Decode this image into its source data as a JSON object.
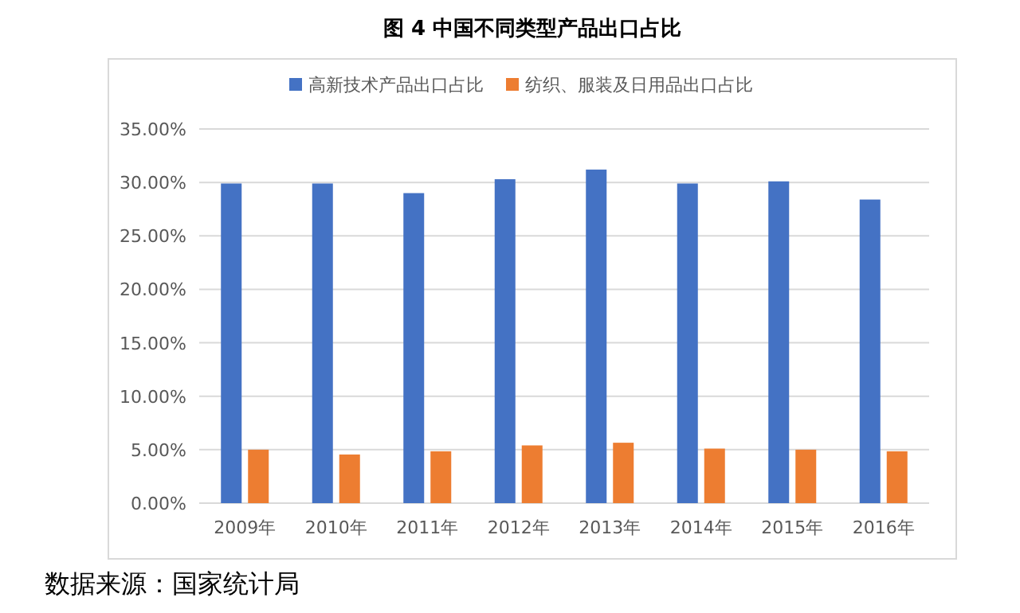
{
  "chart_data": {
    "type": "bar",
    "title": "图 4  中国不同类型产品出口占比",
    "categories": [
      "2009年",
      "2010年",
      "2011年",
      "2012年",
      "2013年",
      "2014年",
      "2015年",
      "2016年"
    ],
    "series": [
      {
        "name": "高新技术产品出口占比",
        "color": "#4472c4",
        "values": [
          29.9,
          29.9,
          29.0,
          30.3,
          31.2,
          29.9,
          30.1,
          28.4
        ]
      },
      {
        "name": "纺织、服装及日用品出口占比",
        "color": "#ed7d31",
        "values": [
          5.0,
          4.55,
          4.85,
          5.4,
          5.65,
          5.1,
          5.0,
          4.85
        ]
      }
    ],
    "ylim": [
      0,
      35
    ],
    "yticks": [
      {
        "value": 0,
        "label": "0.00%"
      },
      {
        "value": 5,
        "label": "5.00%"
      },
      {
        "value": 10,
        "label": "10.00%"
      },
      {
        "value": 15,
        "label": "15.00%"
      },
      {
        "value": 20,
        "label": "20.00%"
      },
      {
        "value": 25,
        "label": "25.00%"
      },
      {
        "value": 30,
        "label": "30.00%"
      },
      {
        "value": 35,
        "label": "35.00%"
      }
    ],
    "grid": "y",
    "legend": "top",
    "annotations": [
      "数据来源：国家统计局"
    ]
  }
}
